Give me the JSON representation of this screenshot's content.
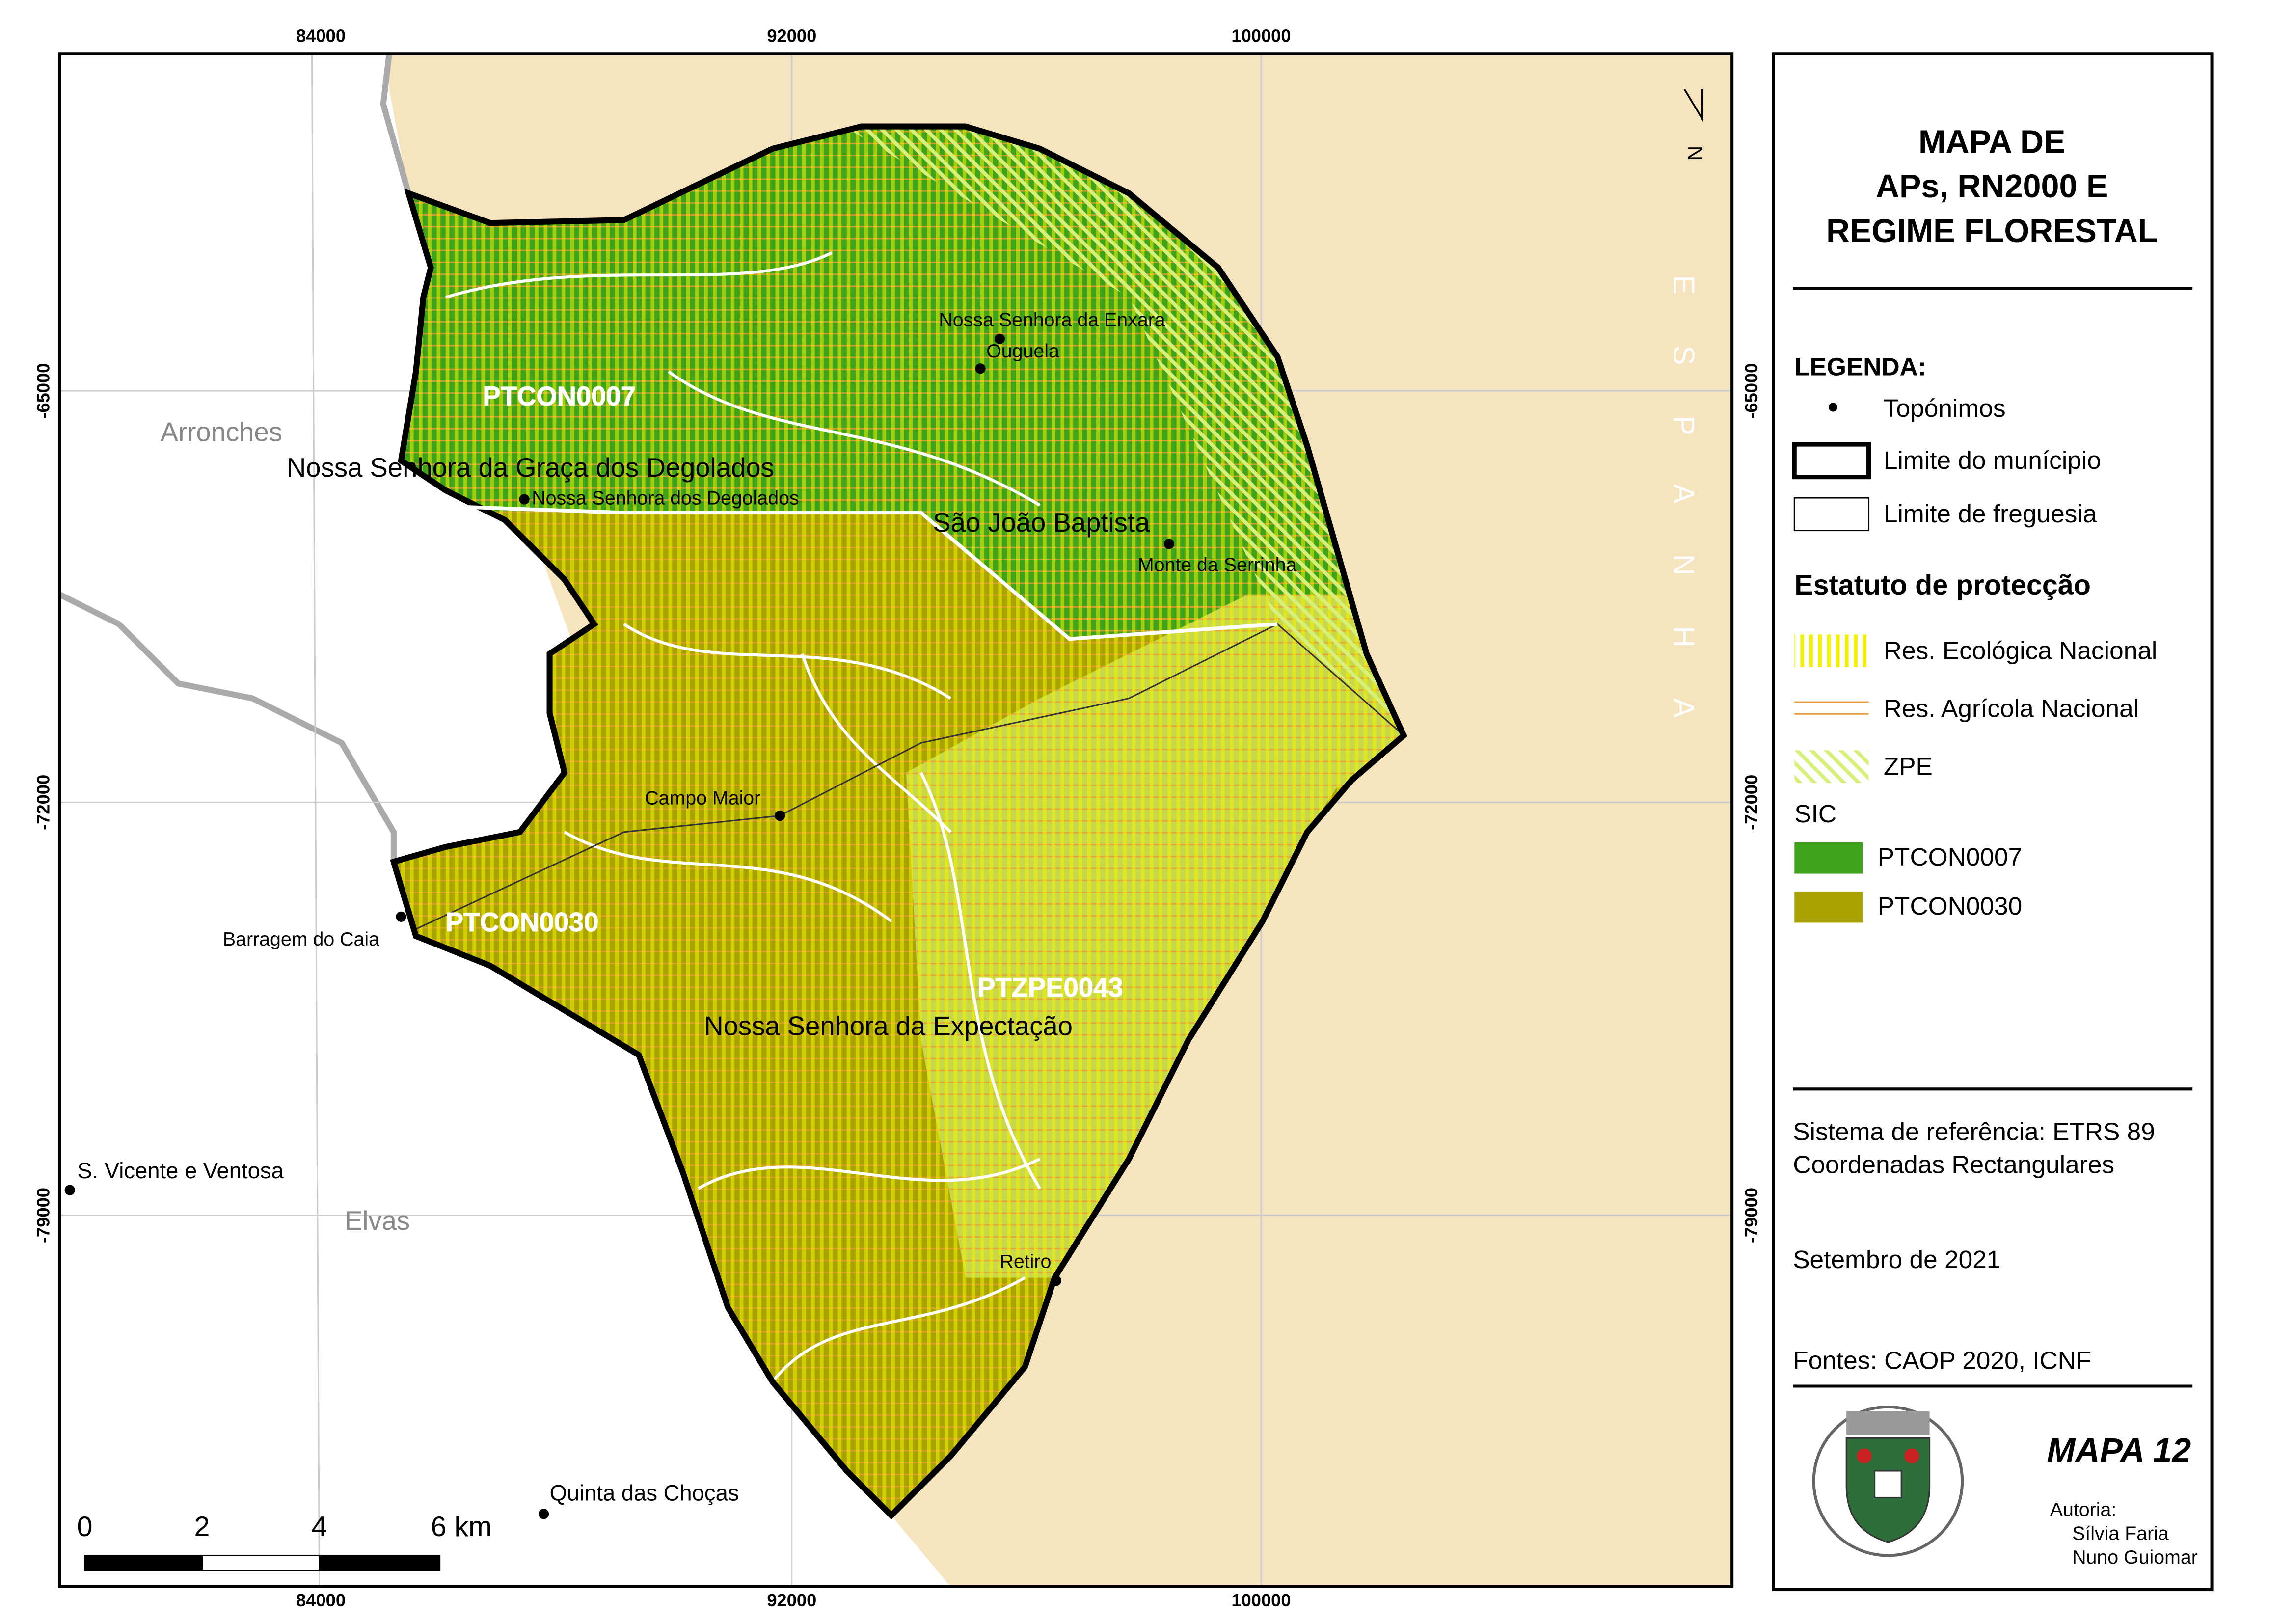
{
  "map": {
    "grid_labels": {
      "x": [
        "84000",
        "92000",
        "100000"
      ],
      "y": [
        "-65000",
        "-72000",
        "-79000"
      ]
    },
    "country_label": "ESPANHA",
    "north": "N",
    "neighbors": [
      "Arronches",
      "Elvas"
    ],
    "parishes": [
      "Nossa Senhora da Graça dos Degolados",
      "São João Baptista",
      "Nossa Senhora da Expectação"
    ],
    "places": [
      "Nossa Senhora da Enxara",
      "Ouguela",
      "Nossa Senhora dos Degolados",
      "Monte da Serrinha",
      "Campo Maior",
      "Barragem do Caia",
      "Retiro",
      "S. Vicente e Ventosa",
      "Quinta das Choças"
    ],
    "site_labels": [
      "PTCON0007",
      "PTCON0030",
      "PTZPE0043"
    ],
    "scale_labels": [
      "0",
      "2",
      "4",
      "6 km"
    ]
  },
  "panel": {
    "title": [
      "MAPA DE",
      "APs, RN2000 E",
      "REGIME FLORESTAL"
    ],
    "legend_title": "LEGENDA:",
    "boundaries": [
      "Topónimos",
      "Limite do munícipio",
      "Limite de freguesia"
    ],
    "protection_title": "Estatuto de protecção",
    "protection": [
      "Res. Ecológica Nacional",
      "Res. Agrícola Nacional",
      "ZPE"
    ],
    "sic_title": "SIC",
    "sic": [
      "PTCON0007",
      "PTCON0030"
    ],
    "info": [
      "Sistema de referência: ETRS 89",
      "Coordenadas Rectangulares",
      "Setembro de 2021",
      "Fontes: CAOP 2020, ICNF"
    ],
    "map_number": "MAPA 12",
    "authorship": "Autoria:",
    "authors": [
      "Sílvia Faria",
      "Nuno Guiomar"
    ]
  }
}
